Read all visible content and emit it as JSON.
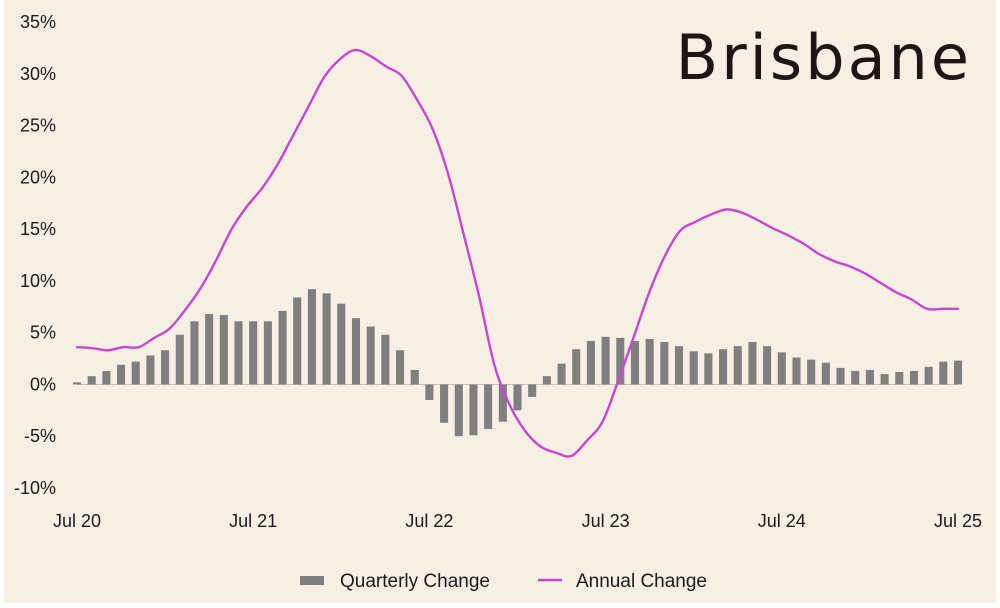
{
  "chart_data": {
    "type": "bar+line",
    "title": "Brisbane",
    "xlabel": "",
    "ylabel": "",
    "ylim": [
      -10,
      35
    ],
    "yticks": [
      35,
      30,
      25,
      20,
      15,
      10,
      5,
      0,
      -5,
      -10
    ],
    "ytick_labels": [
      "35%",
      "30%",
      "25%",
      "20%",
      "15%",
      "10%",
      "5%",
      "0%",
      "-5%",
      "-10%"
    ],
    "xtick_labels": [
      "Jul 20",
      "Jul 21",
      "Jul 22",
      "Jul 23",
      "Jul 24",
      "Jul 25"
    ],
    "x_start": "Jul 20",
    "x_end": "Jul 25",
    "grid": false,
    "legend_placement": "bottom-center",
    "series": [
      {
        "name": "Quarterly Change",
        "kind": "bar",
        "color": "#7f7f7f",
        "values": [
          0.2,
          0.8,
          1.3,
          1.9,
          2.2,
          2.8,
          3.3,
          4.8,
          6.1,
          6.8,
          6.7,
          6.1,
          6.1,
          6.1,
          7.1,
          8.4,
          9.2,
          8.8,
          7.8,
          6.4,
          5.6,
          4.8,
          3.3,
          1.4,
          -1.5,
          -3.7,
          -5.0,
          -4.9,
          -4.3,
          -3.6,
          -2.5,
          -1.2,
          0.8,
          2.0,
          3.4,
          4.2,
          4.6,
          4.5,
          4.2,
          4.4,
          4.1,
          3.7,
          3.2,
          3.0,
          3.4,
          3.7,
          4.1,
          3.7,
          3.1,
          2.6,
          2.4,
          2.1,
          1.6,
          1.3,
          1.4,
          1.0,
          1.2,
          1.3,
          1.7,
          2.2,
          2.3
        ]
      },
      {
        "name": "Annual Change",
        "kind": "line",
        "color": "#c945d3",
        "values": [
          3.6,
          3.5,
          3.3,
          3.6,
          3.6,
          4.5,
          5.4,
          7.2,
          9.3,
          12.0,
          15.0,
          17.2,
          19.0,
          21.3,
          24.1,
          26.9,
          29.7,
          31.4,
          32.3,
          31.7,
          30.7,
          29.8,
          27.5,
          24.7,
          20.4,
          14.6,
          8.6,
          1.9,
          -2.0,
          -4.5,
          -6.0,
          -6.6,
          -6.9,
          -5.4,
          -3.6,
          0.3,
          4.5,
          8.8,
          12.3,
          14.8,
          15.7,
          16.4,
          16.9,
          16.6,
          15.9,
          15.1,
          14.4,
          13.6,
          12.6,
          11.9,
          11.4,
          10.7,
          9.8,
          8.9,
          8.2,
          7.3,
          7.3,
          7.3
        ]
      }
    ]
  },
  "legend": {
    "items": [
      {
        "label": "Quarterly Change",
        "color": "#7f7f7f"
      },
      {
        "label": "Annual Change",
        "color": "#c945d3"
      }
    ]
  }
}
